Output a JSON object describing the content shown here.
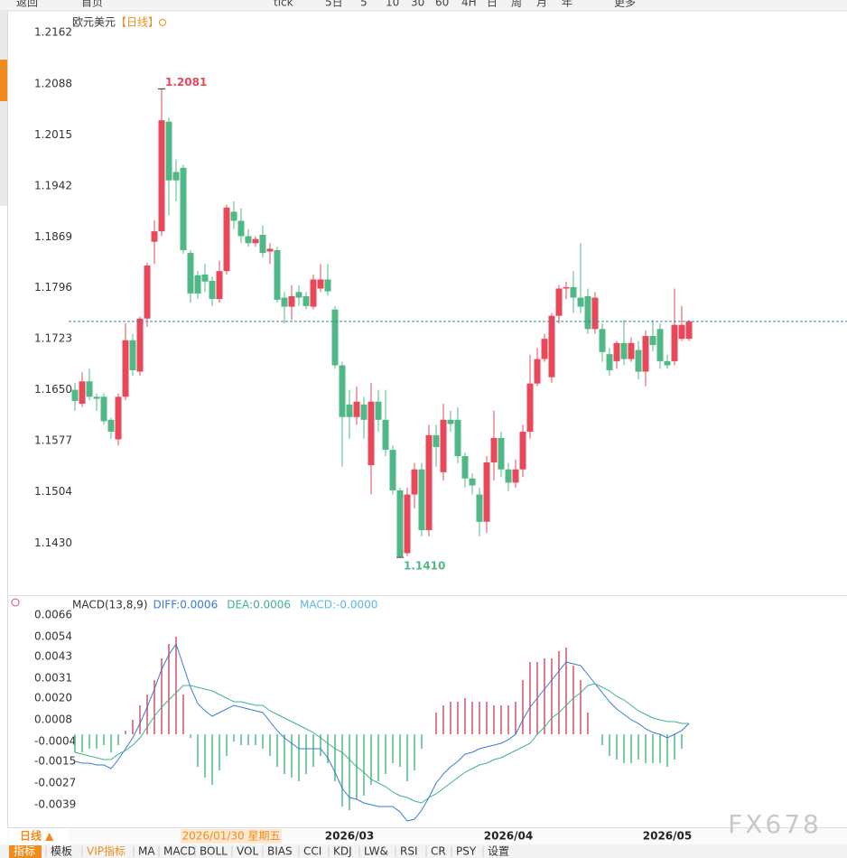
{
  "toolbar": {
    "items": [
      "返回",
      "首页",
      "tick",
      "5日",
      "5",
      "10",
      "30",
      "60",
      "4H",
      "日",
      "周",
      "月",
      "年",
      "更多"
    ]
  },
  "chart_data": [
    {
      "type": "candlestick",
      "title": "欧元美元",
      "period": "【日线】",
      "categories": [
        null,
        null,
        null,
        null,
        null,
        null,
        null,
        null,
        null,
        null,
        null,
        null,
        null,
        null,
        null,
        null,
        null,
        null,
        null,
        null,
        null,
        null,
        null,
        null,
        null,
        null,
        null,
        null,
        null,
        null,
        null,
        null,
        null,
        null,
        null,
        null,
        null,
        null,
        "2026/03",
        null,
        null,
        null,
        null,
        null,
        null,
        null,
        null,
        null,
        null,
        null,
        null,
        null,
        null,
        null,
        null,
        null,
        null,
        null,
        null,
        null,
        "2026/04",
        null,
        null,
        null,
        null,
        null,
        null,
        null,
        null,
        null,
        null,
        null,
        null,
        null,
        null,
        null,
        null,
        null,
        null,
        null,
        null,
        null,
        "2026/05",
        null,
        null,
        null
      ],
      "open": [
        1.165,
        1.163,
        1.1662,
        1.164,
        1.164,
        1.1607,
        1.1579,
        1.164,
        1.1721,
        1.1676,
        1.1752,
        1.1862,
        1.1877,
        1.2034,
        1.1962,
        1.1968,
        1.1846,
        1.1814,
        1.1815,
        1.1806,
        1.178,
        1.182,
        1.1905,
        1.1892,
        1.187,
        1.186,
        1.1872,
        1.1848,
        1.185,
        1.1782,
        1.1769,
        1.179,
        1.1784,
        1.1769,
        1.1795,
        1.1808,
        1.1765,
        1.1685,
        1.1629,
        1.1611,
        1.1629,
        1.1542,
        1.1633,
        1.1607,
        1.1564,
        1.1506,
        1.1416,
        1.15,
        1.1536,
        1.1449,
        1.1585,
        1.1532,
        1.1607,
        1.1607,
        1.1555,
        1.1523,
        1.15,
        1.1461,
        1.1546,
        1.1581,
        1.1536,
        1.1517,
        1.1536,
        1.159,
        1.1659,
        1.1694,
        1.1668,
        1.1756,
        1.1795,
        1.1797,
        1.1782,
        1.1784,
        1.1737,
        1.1737,
        1.1701,
        1.1691,
        1.1717,
        1.1694,
        1.1707,
        1.1676,
        1.1727,
        1.1737,
        1.1691,
        1.1691,
        1.1723,
        1.1723
      ],
      "high": [
        1.166,
        1.1675,
        1.168,
        1.1645,
        1.1645,
        1.161,
        1.1645,
        1.1745,
        1.173,
        1.1755,
        1.1832,
        1.1893,
        1.2081,
        1.204,
        1.198,
        1.1972,
        1.185,
        1.182,
        1.183,
        1.1812,
        1.1835,
        1.1915,
        1.192,
        1.191,
        1.188,
        1.187,
        1.1885,
        1.186,
        1.1855,
        1.179,
        1.18,
        1.18,
        1.179,
        1.1815,
        1.183,
        1.183,
        1.177,
        1.169,
        1.165,
        1.1655,
        1.164,
        1.166,
        1.165,
        1.165,
        1.157,
        1.151,
        1.151,
        1.1545,
        1.1545,
        1.16,
        1.16,
        1.163,
        1.162,
        1.1625,
        1.156,
        1.153,
        1.151,
        1.1555,
        1.162,
        1.159,
        1.1545,
        1.155,
        1.16,
        1.17,
        1.171,
        1.173,
        1.176,
        1.18,
        1.1805,
        1.182,
        1.186,
        1.1795,
        1.179,
        1.1745,
        1.171,
        1.172,
        1.175,
        1.1725,
        1.172,
        1.1735,
        1.175,
        1.1745,
        1.17,
        1.1795,
        1.177,
        1.175
      ],
      "low": [
        1.162,
        1.1625,
        1.1635,
        1.162,
        1.16,
        1.158,
        1.157,
        1.1635,
        1.167,
        1.167,
        1.174,
        1.183,
        1.187,
        1.19,
        1.192,
        1.1845,
        1.1775,
        1.178,
        1.179,
        1.177,
        1.1775,
        1.1815,
        1.188,
        1.186,
        1.1855,
        1.1855,
        1.184,
        1.183,
        1.1775,
        1.1745,
        1.175,
        1.177,
        1.1765,
        1.1765,
        1.179,
        1.1785,
        1.168,
        1.154,
        1.158,
        1.16,
        1.158,
        1.15,
        1.159,
        1.1555,
        1.15,
        1.141,
        1.1412,
        1.148,
        1.144,
        1.144,
        1.154,
        1.152,
        1.159,
        1.1545,
        1.151,
        1.15,
        1.144,
        1.1445,
        1.152,
        1.1525,
        1.1505,
        1.151,
        1.1525,
        1.158,
        1.1655,
        1.169,
        1.166,
        1.1745,
        1.178,
        1.176,
        1.176,
        1.173,
        1.173,
        1.169,
        1.167,
        1.168,
        1.1685,
        1.169,
        1.1665,
        1.1655,
        1.1705,
        1.168,
        1.168,
        1.1685,
        1.172,
        1.172
      ],
      "close": [
        1.1634,
        1.1662,
        1.164,
        1.1637,
        1.1605,
        1.159,
        1.164,
        1.1721,
        1.1678,
        1.1752,
        1.1828,
        1.1877,
        1.2036,
        1.195,
        1.195,
        1.185,
        1.1788,
        1.1788,
        1.1805,
        1.178,
        1.182,
        1.1911,
        1.1892,
        1.187,
        1.186,
        1.1866,
        1.1846,
        1.1852,
        1.1779,
        1.1769,
        1.1784,
        1.1782,
        1.177,
        1.1808,
        1.1808,
        1.1791,
        1.1685,
        1.1611,
        1.1611,
        1.1633,
        1.1607,
        1.1633,
        1.1607,
        1.1564,
        1.1506,
        1.1411,
        1.15,
        1.1536,
        1.1449,
        1.1585,
        1.1568,
        1.1607,
        1.1601,
        1.1555,
        1.1523,
        1.1513,
        1.1461,
        1.1546,
        1.1581,
        1.1536,
        1.1517,
        1.1536,
        1.159,
        1.1659,
        1.1694,
        1.1723,
        1.1756,
        1.1795,
        1.1797,
        1.1782,
        1.1769,
        1.1737,
        1.1782,
        1.1704,
        1.1678,
        1.1717,
        1.1694,
        1.1717,
        1.1676,
        1.1727,
        1.1714,
        1.1691,
        1.1685,
        1.1743,
        1.1743,
        1.1748
      ],
      "up_color": "#e8485a",
      "down_color": "#4fb886",
      "last_line_color": "#2a8f9a",
      "annotations": [
        {
          "index": 12,
          "at": "high",
          "label": "1.2081",
          "color": "#e8485a"
        },
        {
          "index": 45,
          "at": "low",
          "label": "1.1410",
          "color": "#4fb886"
        }
      ],
      "ylim": [
        1.1361,
        1.2185
      ],
      "yticks": [
        {
          "value": 1.2162,
          "label": "1.2162"
        },
        {
          "value": 1.2088,
          "label": "1.2088"
        },
        {
          "value": 1.2015,
          "label": "1.2015"
        },
        {
          "value": 1.1942,
          "label": "1.1942"
        },
        {
          "value": 1.1869,
          "label": "1.1869"
        },
        {
          "value": 1.1796,
          "label": "1.1796"
        },
        {
          "value": 1.1723,
          "label": "1.1723"
        },
        {
          "value": 1.165,
          "label": "1.1650"
        },
        {
          "value": 1.1577,
          "label": "1.1577"
        },
        {
          "value": 1.1504,
          "label": "1.1504"
        },
        {
          "value": 1.143,
          "label": "1.1430"
        }
      ],
      "grid": false
    },
    {
      "type": "macd",
      "title": "MACD(13,8,9)",
      "series": [
        {
          "name": "DIFF",
          "last_label": "DIFF:0.0006",
          "color": "#3a7bd5",
          "values": [
            -0.0015,
            -0.0016,
            -0.0016,
            -0.0017,
            -0.0017,
            -0.0019,
            -0.0014,
            -0.0008,
            -0.0002,
            0.0006,
            0.0015,
            0.0025,
            0.0036,
            0.0044,
            0.005,
            0.0038,
            0.0026,
            0.0017,
            0.0013,
            0.001,
            0.0012,
            0.0014,
            0.0016,
            0.0015,
            0.0014,
            0.0013,
            0.0012,
            0.0007,
            0.0002,
            -0.0002,
            -0.0005,
            -0.0008,
            -0.0008,
            -0.0008,
            -0.0008,
            -0.0013,
            -0.0021,
            -0.003,
            -0.0035,
            -0.0036,
            -0.0038,
            -0.0039,
            -0.004,
            -0.004,
            -0.004,
            -0.0043,
            -0.0048,
            -0.0047,
            -0.0042,
            -0.0035,
            -0.0027,
            -0.0022,
            -0.0018,
            -0.0015,
            -0.0011,
            -0.001,
            -0.0008,
            -0.0007,
            -0.0006,
            -0.0005,
            -0.0003,
            0.0,
            0.0008,
            0.0015,
            0.002,
            0.0025,
            0.003,
            0.0035,
            0.004,
            0.0039,
            0.0038,
            0.0033,
            0.0028,
            0.0023,
            0.0018,
            0.0014,
            0.0011,
            0.0008,
            0.0006,
            0.0003,
            0.0001,
            0.0,
            -0.0002,
            0.0,
            0.0002,
            0.0006
          ]
        },
        {
          "name": "DEA",
          "last_label": "DEA:0.0006",
          "color": "#3cb48c",
          "values": [
            -0.001,
            -0.0011,
            -0.0012,
            -0.0013,
            -0.0014,
            -0.0014,
            -0.0011,
            -0.0009,
            -0.0006,
            -0.0002,
            0.0004,
            0.001,
            0.0015,
            0.0019,
            0.0023,
            0.0027,
            0.0027,
            0.0026,
            0.0025,
            0.0024,
            0.0022,
            0.002,
            0.0018,
            0.0018,
            0.0017,
            0.0016,
            0.0016,
            0.0013,
            0.0011,
            0.0009,
            0.0007,
            0.0005,
            0.0003,
            0.0001,
            -0.0002,
            -0.0005,
            -0.0008,
            -0.001,
            -0.0014,
            -0.0018,
            -0.0021,
            -0.0025,
            -0.0027,
            -0.0029,
            -0.0032,
            -0.0034,
            -0.0035,
            -0.0037,
            -0.0038,
            -0.0035,
            -0.0033,
            -0.003,
            -0.0027,
            -0.0024,
            -0.0021,
            -0.0019,
            -0.0017,
            -0.0016,
            -0.0014,
            -0.0013,
            -0.0011,
            -0.0009,
            -0.0007,
            -0.0005,
            0.0,
            0.0004,
            0.0009,
            0.0012,
            0.0016,
            0.002,
            0.0023,
            0.0027,
            0.0028,
            0.0026,
            0.0024,
            0.0021,
            0.0019,
            0.0016,
            0.0013,
            0.0011,
            0.0009,
            0.0008,
            0.0007,
            0.0007,
            0.0006,
            0.0006
          ]
        },
        {
          "name": "MACD",
          "last_label": "MACD:-0.0000",
          "color": "#5bb8e8",
          "up_color": "#d2506a",
          "down_color": "#4fb886",
          "values": [
            -0.001,
            -0.001,
            -0.0008,
            -0.0008,
            -0.0006,
            -0.001,
            -0.0006,
            0.0002,
            0.0008,
            0.0016,
            0.0022,
            0.003,
            0.0042,
            0.005,
            0.0054,
            0.0022,
            -0.0002,
            -0.0018,
            -0.0024,
            -0.0028,
            -0.002,
            -0.0012,
            -0.0004,
            -0.0006,
            -0.0006,
            -0.0006,
            -0.0008,
            -0.0012,
            -0.0018,
            -0.0022,
            -0.0024,
            -0.0026,
            -0.0022,
            -0.0018,
            -0.0012,
            -0.0016,
            -0.0026,
            -0.004,
            -0.0042,
            -0.0036,
            -0.0034,
            -0.0028,
            -0.0026,
            -0.0022,
            -0.0016,
            -0.0018,
            -0.0026,
            -0.002,
            -0.0008,
            0.0,
            0.0012,
            0.0016,
            0.0018,
            0.0018,
            0.002,
            0.0018,
            0.0018,
            0.0018,
            0.0016,
            0.0016,
            0.0016,
            0.0018,
            0.003,
            0.004,
            0.004,
            0.0042,
            0.0042,
            0.0046,
            0.0048,
            0.0038,
            0.003,
            0.0012,
            0.0,
            -0.0006,
            -0.0012,
            -0.0014,
            -0.0016,
            -0.0016,
            -0.0014,
            -0.0016,
            -0.0016,
            -0.0016,
            -0.0018,
            -0.0014,
            -0.0008,
            0.0
          ]
        }
      ],
      "ylim": [
        -0.0051,
        0.0074
      ],
      "yticks": [
        {
          "value": 0.0066,
          "label": "0.0066"
        },
        {
          "value": 0.0054,
          "label": "0.0054"
        },
        {
          "value": 0.0043,
          "label": "0.0043"
        },
        {
          "value": 0.0031,
          "label": "0.0031"
        },
        {
          "value": 0.002,
          "label": "0.0020"
        },
        {
          "value": 0.0008,
          "label": "0.0008"
        },
        -0.0004,
        {
          "value": -0.0015,
          "label": "-0.0015"
        },
        {
          "value": -0.0027,
          "label": "-0.0027"
        },
        {
          "value": -0.0039,
          "label": "-0.0039"
        }
      ],
      "grid": false
    }
  ],
  "footer": {
    "period": "日线 ▲",
    "crosshair_date": "2026/01/30 星期五"
  },
  "tabs": [
    "指标",
    "模板",
    "VIP指标",
    "MA",
    "MACD",
    "BOLL",
    "VOL",
    "BIAS",
    "CCI",
    "KDJ",
    "LW&",
    "RSI",
    "CR",
    "PSY",
    "设置"
  ],
  "watermark": "FX678"
}
